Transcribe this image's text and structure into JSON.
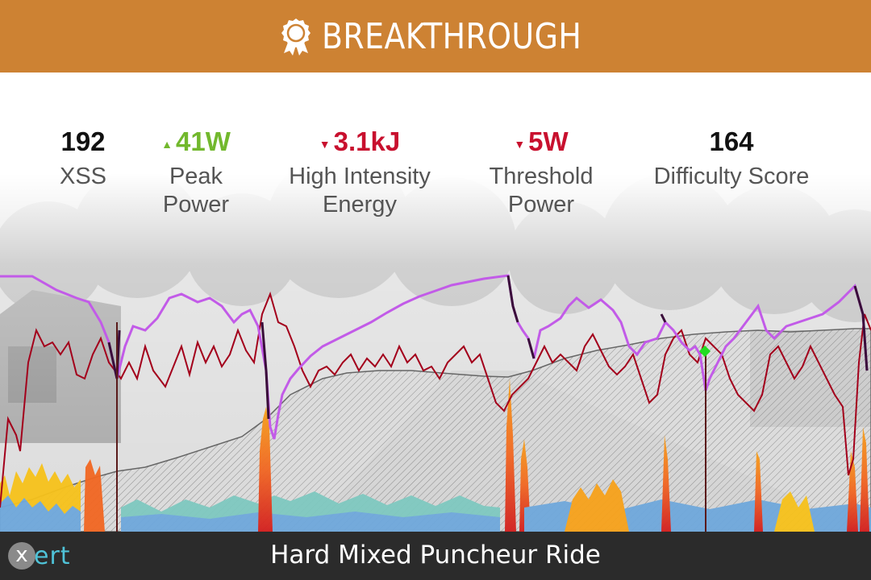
{
  "header": {
    "title": "BREAKTHROUGH",
    "icon": "award-ribbon-icon",
    "background_color": "#cd8233"
  },
  "stats": [
    {
      "value": "192",
      "label_line1": "XSS",
      "label_line2": "",
      "trend": "none",
      "color": "#111111"
    },
    {
      "value": "41W",
      "label_line1": "Peak",
      "label_line2": "Power",
      "trend": "up",
      "color": "#72b82d"
    },
    {
      "value": "3.1kJ",
      "label_line1": "High Intensity",
      "label_line2": "Energy",
      "trend": "down",
      "color": "#c8102e"
    },
    {
      "value": "5W",
      "label_line1": "Threshold",
      "label_line2": "Power",
      "trend": "down",
      "color": "#c8102e"
    },
    {
      "value": "164",
      "label_line1": "Difficulty Score",
      "label_line2": "",
      "trend": "none",
      "color": "#111111"
    }
  ],
  "footer": {
    "title": "Hard Mixed Puncheur Ride",
    "logo_text": "ert",
    "logo_mark": "x"
  },
  "chart_colors": {
    "heart_rate_line": "#a3001b",
    "mpa_line": "#c25be8",
    "mpa_dark": "#3a0d3a",
    "threshold_area_stroke": "#666666",
    "breakthrough_marker": "#22dd22"
  },
  "chart_data": {
    "type": "line",
    "title": "",
    "xlabel": "",
    "ylabel": "",
    "series": [
      {
        "name": "",
        "values": []
      }
    ]
  }
}
